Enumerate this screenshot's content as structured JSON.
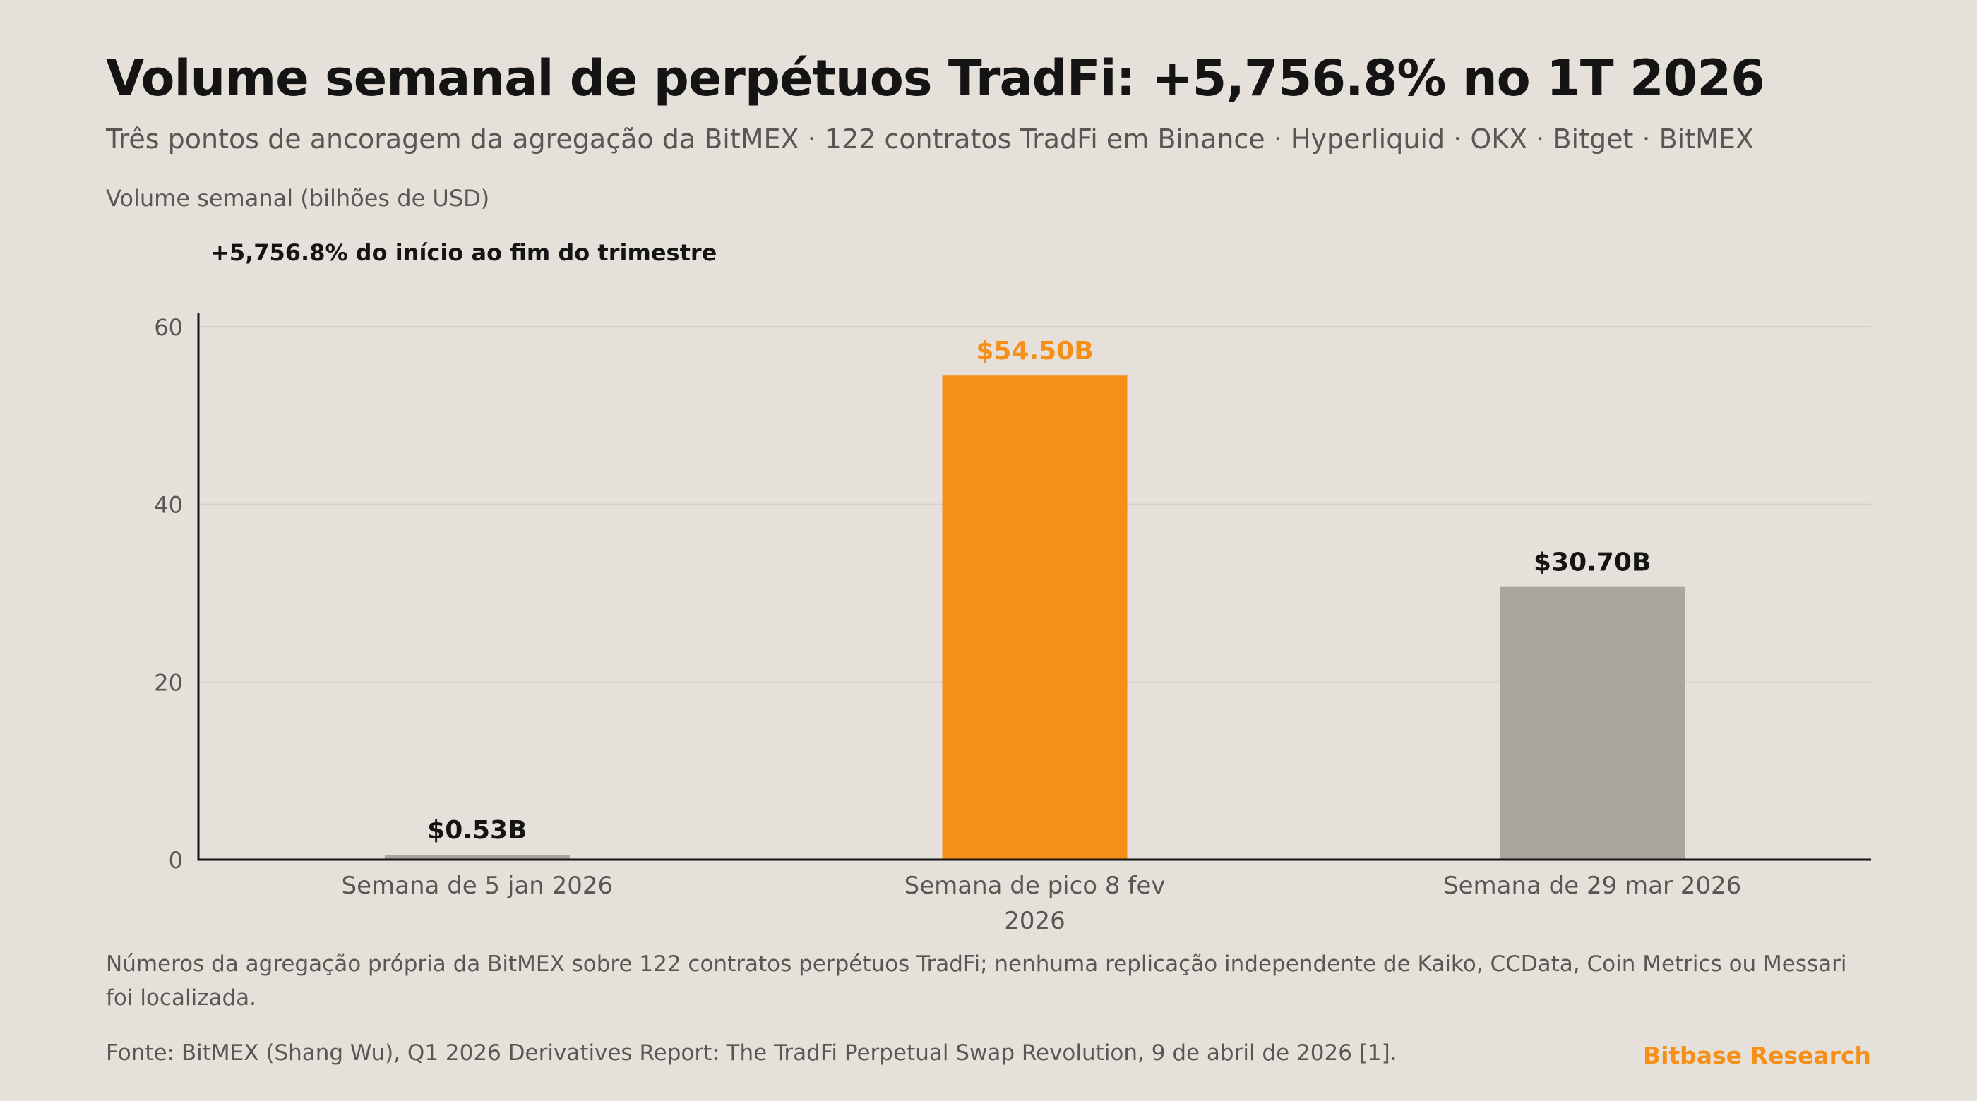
{
  "header": {
    "title": "Volume semanal de perpétuos TradFi: +5,756.8% no 1T 2026",
    "subtitle": "Três pontos de ancoragem da agregação da BitMEX · 122 contratos TradFi em Binance · Hyperliquid · OKX · Bitget · BitMEX"
  },
  "chart_data": {
    "type": "bar",
    "categories": [
      "Semana de 5 jan 2026",
      "Semana de pico 8 fev 2026",
      "Semana de 29 mar 2026"
    ],
    "category_lines": [
      [
        "Semana de 5 jan 2026"
      ],
      [
        "Semana de pico 8 fev",
        "2026"
      ],
      [
        "Semana de 29 mar 2026"
      ]
    ],
    "values": [
      0.53,
      54.5,
      30.7
    ],
    "data_labels": [
      "$0.53B",
      "$54.50B",
      "$30.70B"
    ],
    "bar_colors": [
      "#a9a59f",
      "#f58f17",
      "#a9a59f"
    ],
    "data_label_colors": [
      "#141414",
      "#f58f17",
      "#141414"
    ],
    "ylabel": "Volume semanal (bilhões de USD)",
    "ylim": [
      0,
      60
    ],
    "yticks": [
      0,
      20,
      40,
      60
    ],
    "grid": true,
    "annotation": "+5,756.8% do início ao fim do trimestre"
  },
  "footer": {
    "note": "Números da agregação própria da BitMEX sobre 122 contratos perpétuos TradFi; nenhuma replicação independente de Kaiko, CCData, Coin Metrics ou Messari foi localizada.",
    "source": "Fonte: BitMEX (Shang Wu), Q1 2026 Derivatives Report: The TradFi Perpetual Swap Revolution, 9 de abril de 2026 [1].",
    "brand": "Bitbase Research"
  },
  "colors": {
    "background": "#e5e0da",
    "accent": "#f58f17",
    "neutral_bar": "#a9a59f",
    "text": "#141414",
    "muted_text": "#5a5753",
    "grid": "#d3cec8"
  }
}
